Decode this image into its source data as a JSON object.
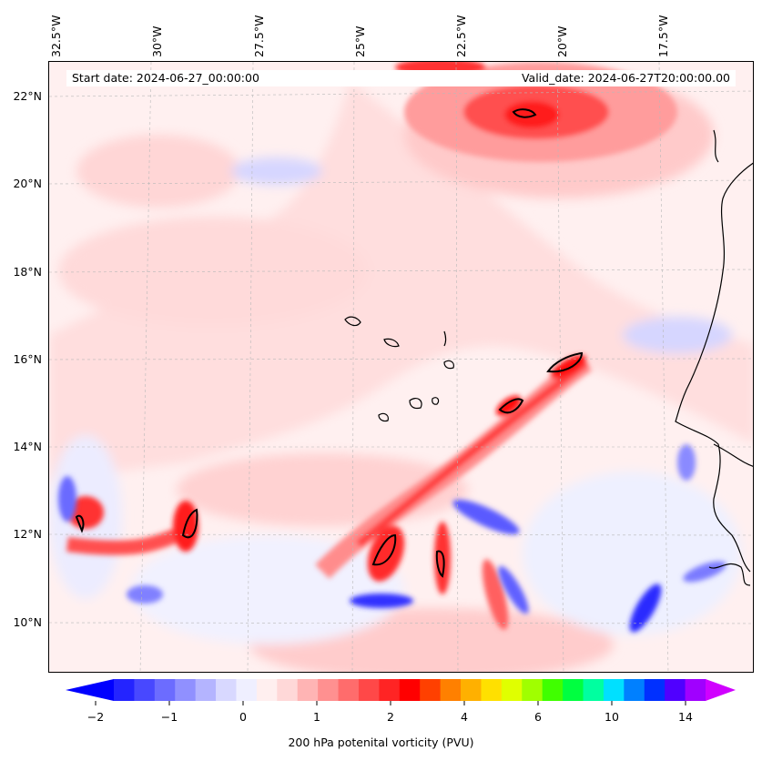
{
  "map": {
    "start_date": "Start date: 2024-06-27_00:00:00",
    "valid_date": "Valid_date: 2024-06-27T20:00:00.00",
    "lon_labels": [
      "32.5°W",
      "30°W",
      "27.5°W",
      "25°W",
      "22.5°W",
      "20°W",
      "17.5°W"
    ],
    "lat_labels": [
      "22°N",
      "20°N",
      "18°N",
      "16°N",
      "14°N",
      "12°N",
      "10°N"
    ]
  },
  "colorbar": {
    "title": "200 hPa potenital vorticity (PVU)",
    "tick_labels": [
      "−2",
      "−1",
      "0",
      "1",
      "2",
      "4",
      "6",
      "10",
      "14"
    ],
    "colors": [
      "#0000ff",
      "#2424ff",
      "#4848ff",
      "#6c6cff",
      "#9090ff",
      "#b4b4ff",
      "#d8d8ff",
      "#efefff",
      "#ffefef",
      "#ffd8d8",
      "#ffb4b4",
      "#ff9090",
      "#ff6c6c",
      "#ff4848",
      "#ff2424",
      "#ff0000",
      "#ff4000",
      "#ff8000",
      "#ffb000",
      "#ffe000",
      "#e0ff00",
      "#a0ff00",
      "#40ff00",
      "#00ff40",
      "#00ffa0",
      "#00e0ff",
      "#0080ff",
      "#0030ff",
      "#5000ff",
      "#a000ff",
      "#d000ff"
    ]
  }
}
